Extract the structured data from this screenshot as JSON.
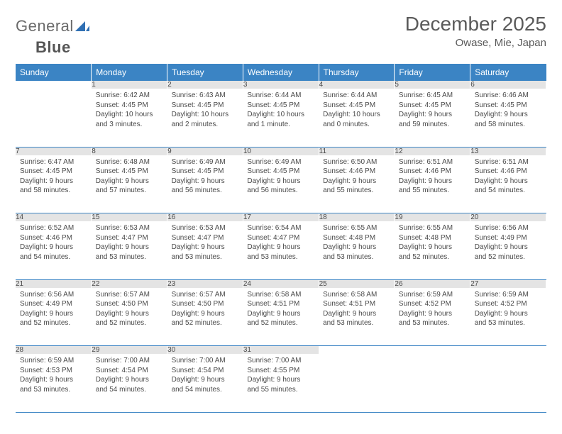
{
  "brand": {
    "word1": "General",
    "word2": "Blue"
  },
  "title": "December 2025",
  "location": "Owase, Mie, Japan",
  "colors": {
    "header_bg": "#3b84c4",
    "header_text": "#ffffff",
    "daynum_bg": "#e4e4e4",
    "daynum_text": "#6a6a6a",
    "rule": "#3b84c4",
    "body_text": "#4a4a4a",
    "title_text": "#5a5a5a"
  },
  "weekdays": [
    "Sunday",
    "Monday",
    "Tuesday",
    "Wednesday",
    "Thursday",
    "Friday",
    "Saturday"
  ],
  "weeks": [
    [
      null,
      {
        "n": "1",
        "sr": "Sunrise: 6:42 AM",
        "ss": "Sunset: 4:45 PM",
        "dl": "Daylight: 10 hours and 3 minutes."
      },
      {
        "n": "2",
        "sr": "Sunrise: 6:43 AM",
        "ss": "Sunset: 4:45 PM",
        "dl": "Daylight: 10 hours and 2 minutes."
      },
      {
        "n": "3",
        "sr": "Sunrise: 6:44 AM",
        "ss": "Sunset: 4:45 PM",
        "dl": "Daylight: 10 hours and 1 minute."
      },
      {
        "n": "4",
        "sr": "Sunrise: 6:44 AM",
        "ss": "Sunset: 4:45 PM",
        "dl": "Daylight: 10 hours and 0 minutes."
      },
      {
        "n": "5",
        "sr": "Sunrise: 6:45 AM",
        "ss": "Sunset: 4:45 PM",
        "dl": "Daylight: 9 hours and 59 minutes."
      },
      {
        "n": "6",
        "sr": "Sunrise: 6:46 AM",
        "ss": "Sunset: 4:45 PM",
        "dl": "Daylight: 9 hours and 58 minutes."
      }
    ],
    [
      {
        "n": "7",
        "sr": "Sunrise: 6:47 AM",
        "ss": "Sunset: 4:45 PM",
        "dl": "Daylight: 9 hours and 58 minutes."
      },
      {
        "n": "8",
        "sr": "Sunrise: 6:48 AM",
        "ss": "Sunset: 4:45 PM",
        "dl": "Daylight: 9 hours and 57 minutes."
      },
      {
        "n": "9",
        "sr": "Sunrise: 6:49 AM",
        "ss": "Sunset: 4:45 PM",
        "dl": "Daylight: 9 hours and 56 minutes."
      },
      {
        "n": "10",
        "sr": "Sunrise: 6:49 AM",
        "ss": "Sunset: 4:45 PM",
        "dl": "Daylight: 9 hours and 56 minutes."
      },
      {
        "n": "11",
        "sr": "Sunrise: 6:50 AM",
        "ss": "Sunset: 4:46 PM",
        "dl": "Daylight: 9 hours and 55 minutes."
      },
      {
        "n": "12",
        "sr": "Sunrise: 6:51 AM",
        "ss": "Sunset: 4:46 PM",
        "dl": "Daylight: 9 hours and 55 minutes."
      },
      {
        "n": "13",
        "sr": "Sunrise: 6:51 AM",
        "ss": "Sunset: 4:46 PM",
        "dl": "Daylight: 9 hours and 54 minutes."
      }
    ],
    [
      {
        "n": "14",
        "sr": "Sunrise: 6:52 AM",
        "ss": "Sunset: 4:46 PM",
        "dl": "Daylight: 9 hours and 54 minutes."
      },
      {
        "n": "15",
        "sr": "Sunrise: 6:53 AM",
        "ss": "Sunset: 4:47 PM",
        "dl": "Daylight: 9 hours and 53 minutes."
      },
      {
        "n": "16",
        "sr": "Sunrise: 6:53 AM",
        "ss": "Sunset: 4:47 PM",
        "dl": "Daylight: 9 hours and 53 minutes."
      },
      {
        "n": "17",
        "sr": "Sunrise: 6:54 AM",
        "ss": "Sunset: 4:47 PM",
        "dl": "Daylight: 9 hours and 53 minutes."
      },
      {
        "n": "18",
        "sr": "Sunrise: 6:55 AM",
        "ss": "Sunset: 4:48 PM",
        "dl": "Daylight: 9 hours and 53 minutes."
      },
      {
        "n": "19",
        "sr": "Sunrise: 6:55 AM",
        "ss": "Sunset: 4:48 PM",
        "dl": "Daylight: 9 hours and 52 minutes."
      },
      {
        "n": "20",
        "sr": "Sunrise: 6:56 AM",
        "ss": "Sunset: 4:49 PM",
        "dl": "Daylight: 9 hours and 52 minutes."
      }
    ],
    [
      {
        "n": "21",
        "sr": "Sunrise: 6:56 AM",
        "ss": "Sunset: 4:49 PM",
        "dl": "Daylight: 9 hours and 52 minutes."
      },
      {
        "n": "22",
        "sr": "Sunrise: 6:57 AM",
        "ss": "Sunset: 4:50 PM",
        "dl": "Daylight: 9 hours and 52 minutes."
      },
      {
        "n": "23",
        "sr": "Sunrise: 6:57 AM",
        "ss": "Sunset: 4:50 PM",
        "dl": "Daylight: 9 hours and 52 minutes."
      },
      {
        "n": "24",
        "sr": "Sunrise: 6:58 AM",
        "ss": "Sunset: 4:51 PM",
        "dl": "Daylight: 9 hours and 52 minutes."
      },
      {
        "n": "25",
        "sr": "Sunrise: 6:58 AM",
        "ss": "Sunset: 4:51 PM",
        "dl": "Daylight: 9 hours and 53 minutes."
      },
      {
        "n": "26",
        "sr": "Sunrise: 6:59 AM",
        "ss": "Sunset: 4:52 PM",
        "dl": "Daylight: 9 hours and 53 minutes."
      },
      {
        "n": "27",
        "sr": "Sunrise: 6:59 AM",
        "ss": "Sunset: 4:52 PM",
        "dl": "Daylight: 9 hours and 53 minutes."
      }
    ],
    [
      {
        "n": "28",
        "sr": "Sunrise: 6:59 AM",
        "ss": "Sunset: 4:53 PM",
        "dl": "Daylight: 9 hours and 53 minutes."
      },
      {
        "n": "29",
        "sr": "Sunrise: 7:00 AM",
        "ss": "Sunset: 4:54 PM",
        "dl": "Daylight: 9 hours and 54 minutes."
      },
      {
        "n": "30",
        "sr": "Sunrise: 7:00 AM",
        "ss": "Sunset: 4:54 PM",
        "dl": "Daylight: 9 hours and 54 minutes."
      },
      {
        "n": "31",
        "sr": "Sunrise: 7:00 AM",
        "ss": "Sunset: 4:55 PM",
        "dl": "Daylight: 9 hours and 55 minutes."
      },
      null,
      null,
      null
    ]
  ]
}
